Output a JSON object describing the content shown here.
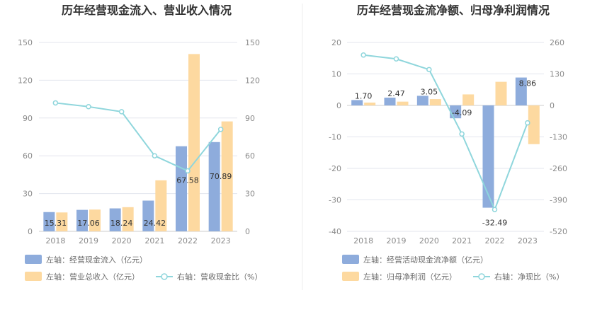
{
  "chart_data": [
    {
      "type": "bar",
      "title": "历年经营现金流入、营业收入情况",
      "categories": [
        "2018",
        "2019",
        "2020",
        "2021",
        "2022",
        "2023"
      ],
      "left_axis": {
        "ylim": [
          0,
          150
        ],
        "ticks": [
          "0",
          "30",
          "60",
          "90",
          "120",
          "150"
        ]
      },
      "right_axis": {
        "ylim": [
          0,
          150
        ],
        "ticks": [
          "0",
          "30",
          "60",
          "90",
          "120",
          "150"
        ]
      },
      "grid": true,
      "legend_position": "bottom-left",
      "series": [
        {
          "name": "左轴：经营现金流入（亿元）",
          "type": "bar",
          "axis": "left",
          "color": "#8eacdc",
          "values": [
            15.31,
            17.06,
            18.24,
            24.42,
            67.58,
            70.89
          ],
          "labels": [
            "15.31",
            "17.06",
            "18.24",
            "24.42",
            "67.58",
            "70.89"
          ]
        },
        {
          "name": "左轴：营业总收入（亿元）",
          "type": "bar",
          "axis": "left",
          "color": "#fdd9a0",
          "values": [
            15.0,
            17.3,
            19.2,
            40.5,
            140.8,
            87.3
          ]
        },
        {
          "name": "右轴：营收现金比（%）",
          "type": "line",
          "axis": "right",
          "color": "#8fd6dc",
          "values": [
            102,
            99,
            95,
            60,
            48,
            81
          ]
        }
      ]
    },
    {
      "type": "bar",
      "title": "历年经营现金流净额、归母净利润情况",
      "categories": [
        "2018",
        "2019",
        "2020",
        "2021",
        "2022",
        "2023"
      ],
      "left_axis": {
        "ylim": [
          -40,
          20
        ],
        "ticks": [
          "-40",
          "-30",
          "-20",
          "-10",
          "0",
          "10",
          "20"
        ]
      },
      "right_axis": {
        "ylim": [
          -520,
          260
        ],
        "ticks": [
          "-520",
          "-390",
          "-260",
          "-130",
          "0",
          "130",
          "260"
        ]
      },
      "grid": true,
      "legend_position": "bottom-left",
      "series": [
        {
          "name": "左轴：经营活动现金流净额（亿元）",
          "type": "bar",
          "axis": "left",
          "color": "#8eacdc",
          "values": [
            1.7,
            2.47,
            3.05,
            -4.09,
            -32.49,
            8.86
          ],
          "labels": [
            "1.70",
            "2.47",
            "3.05",
            "-4.09",
            "-32.49",
            "8.86"
          ]
        },
        {
          "name": "左轴：归母净利润（亿元）",
          "type": "bar",
          "axis": "left",
          "color": "#fdd9a0",
          "values": [
            0.9,
            1.2,
            2.0,
            3.5,
            7.5,
            -12.3
          ]
        },
        {
          "name": "右轴：净现比（%）",
          "type": "line",
          "axis": "right",
          "color": "#8fd6dc",
          "values": [
            208,
            192,
            148,
            -118,
            -430,
            -72
          ]
        }
      ]
    }
  ]
}
